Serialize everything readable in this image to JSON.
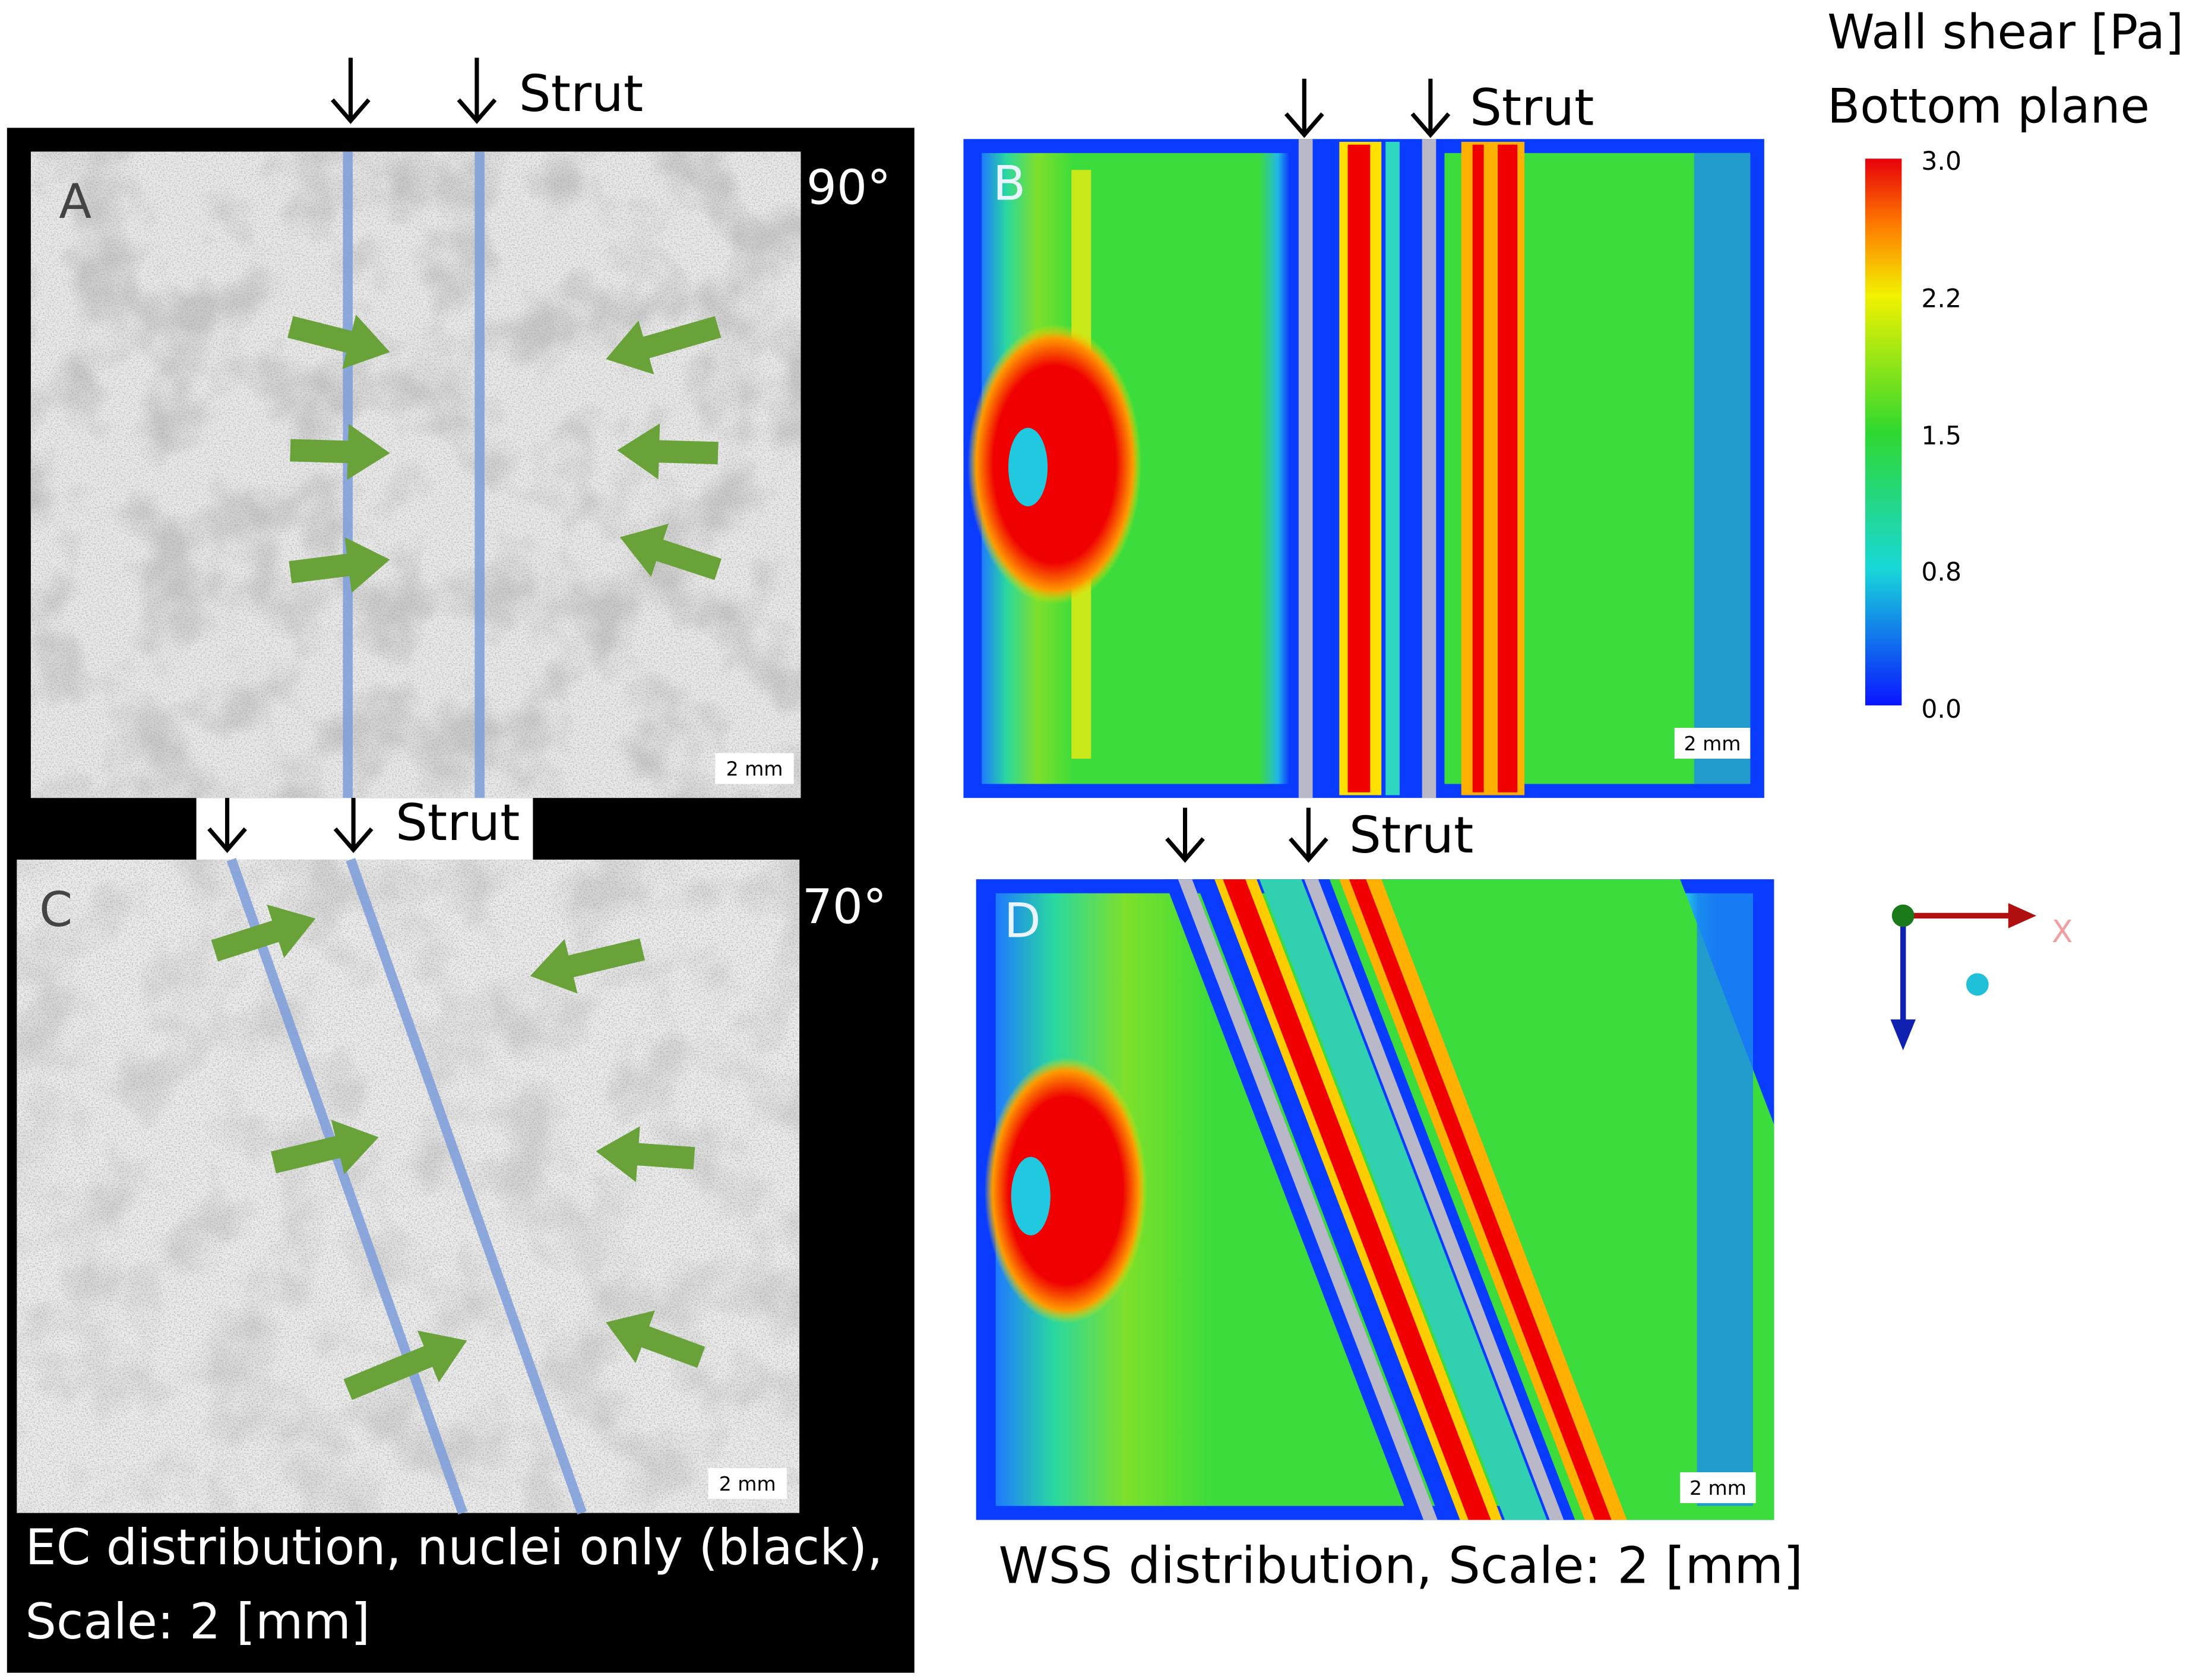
{
  "panels": {
    "A": {
      "label": "A",
      "angle": "90°",
      "strut": "Strut",
      "scale": "2 mm"
    },
    "B": {
      "label": "B",
      "strut": "Strut",
      "scale": "2 mm"
    },
    "C": {
      "label": "C",
      "angle": "70°",
      "strut": "Strut",
      "scale": "2 mm"
    },
    "D": {
      "label": "D",
      "strut": "Strut",
      "scale": "2 mm"
    }
  },
  "captions": {
    "left": [
      "EC distribution, nuclei only (black),",
      "Scale: 2 [mm]"
    ],
    "right": "WSS distribution, Scale: 2 [mm]"
  },
  "colorbar": {
    "title": [
      "Wall shear [Pa]",
      "Bottom plane"
    ],
    "ticks": [
      "3.0",
      "2.2",
      "1.5",
      "0.8",
      "0.0"
    ]
  },
  "axes": {
    "x": "X"
  }
}
